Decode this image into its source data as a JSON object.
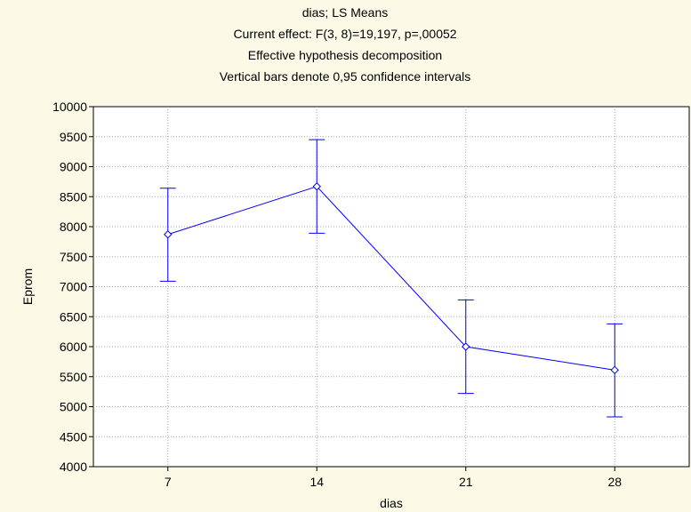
{
  "chart_data": {
    "type": "line",
    "title_lines": [
      "dias; LS Means",
      "Current effect: F(3, 8)=19,197, p=,00052",
      "Effective hypothesis decomposition",
      "Vertical bars denote 0,95 confidence intervals"
    ],
    "xlabel": "dias",
    "ylabel": "Eprom",
    "categories": [
      "7",
      "14",
      "21",
      "28"
    ],
    "ylim": [
      4000,
      10000
    ],
    "ytick_step": 500,
    "yticks": [
      "4000",
      "4500",
      "5000",
      "5500",
      "6000",
      "6500",
      "7000",
      "7500",
      "8000",
      "8500",
      "9000",
      "9500",
      "10000"
    ],
    "grid": true,
    "series": [
      {
        "values": [
          7870,
          8670,
          6000,
          5610
        ],
        "ci_lower": [
          7090,
          7890,
          5220,
          4830
        ],
        "ci_upper": [
          8640,
          9450,
          6780,
          6380
        ],
        "color": "#0000ff"
      }
    ]
  }
}
